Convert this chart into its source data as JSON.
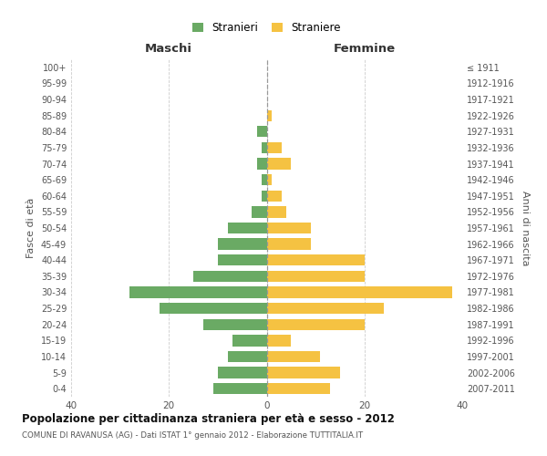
{
  "age_groups": [
    "100+",
    "95-99",
    "90-94",
    "85-89",
    "80-84",
    "75-79",
    "70-74",
    "65-69",
    "60-64",
    "55-59",
    "50-54",
    "45-49",
    "40-44",
    "35-39",
    "30-34",
    "25-29",
    "20-24",
    "15-19",
    "10-14",
    "5-9",
    "0-4"
  ],
  "birth_years": [
    "≤ 1911",
    "1912-1916",
    "1917-1921",
    "1922-1926",
    "1927-1931",
    "1932-1936",
    "1937-1941",
    "1942-1946",
    "1947-1951",
    "1952-1956",
    "1957-1961",
    "1962-1966",
    "1967-1971",
    "1972-1976",
    "1977-1981",
    "1982-1986",
    "1987-1991",
    "1992-1996",
    "1997-2001",
    "2002-2006",
    "2007-2011"
  ],
  "maschi": [
    0,
    0,
    0,
    0,
    2,
    1,
    2,
    1,
    1,
    3,
    8,
    10,
    10,
    15,
    28,
    22,
    13,
    7,
    8,
    10,
    11
  ],
  "femmine": [
    0,
    0,
    0,
    1,
    0,
    3,
    5,
    1,
    3,
    4,
    9,
    9,
    20,
    20,
    38,
    24,
    20,
    5,
    11,
    15,
    13
  ],
  "color_maschi": "#6aaa64",
  "color_femmine": "#f5c242",
  "background_color": "#ffffff",
  "grid_color": "#cccccc",
  "title": "Popolazione per cittadinanza straniera per età e sesso - 2012",
  "subtitle": "COMUNE DI RAVANUSA (AG) - Dati ISTAT 1° gennaio 2012 - Elaborazione TUTTITALIA.IT",
  "xlabel_left": "Maschi",
  "xlabel_right": "Femmine",
  "ylabel_left": "Fasce di età",
  "ylabel_right": "Anni di nascita",
  "legend_maschi": "Stranieri",
  "legend_femmine": "Straniere",
  "xlim": 40
}
